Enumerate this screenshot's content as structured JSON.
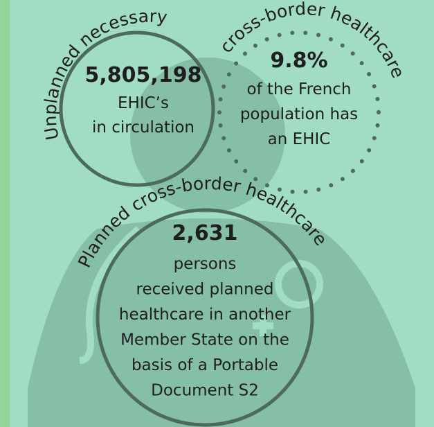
{
  "unplanned": {
    "arc_left": "Unplanned necessary",
    "arc_right": "cross-border healthcare",
    "ehic": {
      "number": "5,805,198",
      "lines": [
        "EHIC’s",
        "in circulation"
      ]
    },
    "share": {
      "number": "9.8%",
      "lines": [
        "of the French",
        "population has",
        "an EHIC"
      ]
    }
  },
  "planned": {
    "arc": "Planned cross-border healthcare",
    "number": "2,631",
    "lines": [
      "persons",
      "received planned",
      "healthcare in another",
      "Member State on the",
      "basis of a Portable",
      "Document S2"
    ]
  }
}
